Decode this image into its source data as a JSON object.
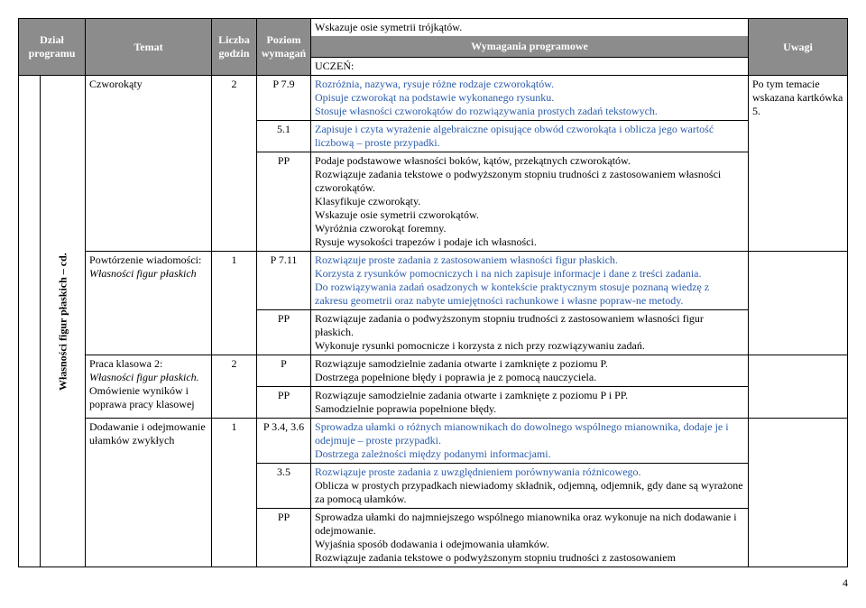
{
  "headers": {
    "col1": "Dział programu",
    "col2": "Temat",
    "col3": "Liczba godzin",
    "col4": "Poziom wymagań",
    "col5a": "Wskazuje osie symetrii trójkątów.",
    "col5b": "Wymagania programowe",
    "col5c": "UCZEŃ:",
    "col6": "Uwagi"
  },
  "sidebar": "Własności figur płaskich – cd.",
  "rows": [
    {
      "temat": "Czworokąty",
      "godzin": "2",
      "levels": [
        {
          "code": "P 7.9",
          "text": "Rozróżnia, nazywa, rysuje różne rodzaje czworokątów.\nOpisuje czworokąt na podstawie wykonanego rysunku.\nStosuje własności czworokątów do rozwiązywania prostych zadań tekstowych.",
          "blue": true
        },
        {
          "code": "5.1",
          "text": "Zapisuje i czyta wyrażenie algebraiczne opisujące obwód czworokąta i oblicza jego wartość liczbową – proste przypadki.",
          "blue": true
        },
        {
          "code": "PP",
          "text": "Podaje podstawowe własności boków, kątów, przekątnych czworokątów.\nRozwiązuje zadania tekstowe o podwyższonym stopniu trudności z zastosowaniem własności czworokątów.\nKlasyfikuje czworokąty.\nWskazuje osie symetrii czworokątów.\nWyróżnia czworokąt foremny.\nRysuje wysokości trapezów i podaje ich własności.",
          "blue": false
        }
      ],
      "uwagi": "Po tym temacie wskazana kartkówka 5."
    },
    {
      "temat": "Powtórzenie wiadomości: ",
      "temat_italic": "Własności figur płaskich",
      "godzin": "1",
      "levels": [
        {
          "code": "P 7.11",
          "text": "Rozwiązuje proste zadania z zastosowaniem własności figur płaskich.\nKorzysta z rysunków pomocniczych i na nich zapisuje informacje i dane z treści zadania.\nDo rozwiązywania zadań osadzonych w kontekście praktycznym stosuje poznaną wiedzę z zakresu geometrii oraz nabyte umiejętności rachunkowe i własne popraw-ne metody.",
          "blue": true
        },
        {
          "code": "PP",
          "text": "Rozwiązuje zadania o podwyższonym stopniu trudności z zastosowaniem własności figur płaskich.\nWykonuje rysunki pomocnicze i korzysta z nich przy rozwiązywaniu zadań.",
          "blue": false
        }
      ],
      "uwagi": ""
    },
    {
      "temat": "Praca klasowa 2:\n",
      "temat_italic": "Własności figur płaskich.",
      "temat_after": "\nOmówienie wyników i poprawa pracy klasowej",
      "godzin": "2",
      "levels": [
        {
          "code": "P",
          "text": "Rozwiązuje samodzielnie zadania otwarte i zamknięte z poziomu P.\nDostrzega popełnione błędy i poprawia je z pomocą nauczyciela.",
          "blue": false
        },
        {
          "code": "PP",
          "text": "Rozwiązuje samodzielnie zadania otwarte i zamknięte z poziomu P i PP.\nSamodzielnie poprawia popełnione błędy.",
          "blue": false
        }
      ],
      "uwagi": ""
    },
    {
      "temat": "Dodawanie i odejmowanie ułamków zwykłych",
      "godzin": "1",
      "levels": [
        {
          "code": "P 3.4,  3.6",
          "text": "Sprowadza ułamki o różnych mianownikach do dowolnego wspólnego mianownika, dodaje je i odejmuje – proste przypadki.\nDostrzega zależności między podanymi informacjami.",
          "blue": true
        },
        {
          "code": "3.5",
          "text": "Rozwiązuje proste zadania z uwzględnieniem porównywania różnicowego.\nOblicza w prostych przypadkach niewiadomy składnik, odjemną, odjemnik, gdy dane są wyrażone za pomocą ułamków.",
          "blue": true,
          "firstBlack": false,
          "mixed": [
            {
              "t": "Rozwiązuje proste zadania z uwzględnieniem porównywania różnicowego.",
              "blue": true
            },
            {
              "t": "Oblicza w prostych przypadkach niewiadomy składnik, odjemną, odjemnik, gdy dane są wyrażone za pomocą ułamków.",
              "blue": false
            }
          ]
        },
        {
          "code": "PP",
          "text": "Sprowadza ułamki do najmniejszego wspólnego mianownika oraz wykonuje na nich dodawanie i odejmowanie.\nWyjaśnia sposób dodawania i odejmowania ułamków.\nRozwiązuje zadania tekstowe o podwyższonym stopniu trudności z zastosowaniem",
          "blue": false
        }
      ],
      "uwagi": ""
    }
  ],
  "page": "4"
}
